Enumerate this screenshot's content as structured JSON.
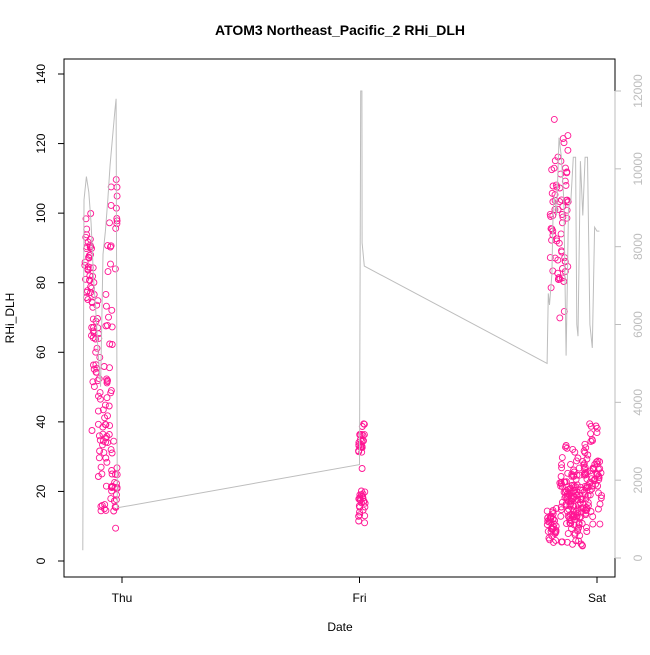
{
  "chart_data": {
    "type": "scatter",
    "title": "ATOM3 Northeast_Pacific_2 RHi_DLH",
    "xlabel": "Date",
    "ylabel": "RHi_DLH",
    "x_ticks": [
      "Thu",
      "Fri",
      "Sat"
    ],
    "ylim": [
      0,
      140
    ],
    "y_ticks": [
      0,
      20,
      40,
      60,
      80,
      100,
      120,
      140
    ],
    "y2lim": [
      0,
      12000
    ],
    "y2_ticks": [
      0,
      2000,
      4000,
      6000,
      8000,
      10000,
      12000
    ],
    "grid": false,
    "legend": "none",
    "series": [
      {
        "role": "points",
        "color": "#ff1493",
        "marker": "open-circle",
        "axis": "left",
        "segments": [
          {
            "start": -0.16,
            "end": -0.12,
            "y_center": 85,
            "y_spread": 20
          },
          {
            "start": -0.13,
            "end": -0.09,
            "y_center": 60,
            "y_spread": 30
          },
          {
            "start": -0.1,
            "end": -0.06,
            "y_center": 35,
            "y_spread": 30
          },
          {
            "start": -0.07,
            "end": -0.04,
            "y_center": 70,
            "y_spread": 60
          },
          {
            "start": -0.05,
            "end": -0.02,
            "y_center": 20,
            "y_spread": 18
          },
          {
            "start": -0.03,
            "end": -0.02,
            "y_center": 100,
            "y_spread": 20
          },
          {
            "start": 0.996,
            "end": 1.024,
            "y_center": 35,
            "y_spread": 10
          },
          {
            "start": 0.996,
            "end": 1.024,
            "y_center": 17,
            "y_spread": 8
          },
          {
            "start": 1.79,
            "end": 1.83,
            "y_center": 10,
            "y_spread": 8
          },
          {
            "start": 1.8,
            "end": 1.88,
            "y_center": 100,
            "y_spread": 35
          },
          {
            "start": 1.84,
            "end": 1.92,
            "y_center": 20,
            "y_spread": 20
          },
          {
            "start": 1.88,
            "end": 1.96,
            "y_center": 15,
            "y_spread": 15
          },
          {
            "start": 1.94,
            "end": 2.02,
            "y_center": 25,
            "y_spread": 20
          }
        ]
      },
      {
        "role": "altitude",
        "color": "#bdbdbd",
        "axis": "right",
        "x": [
          -0.165,
          -0.16,
          -0.15,
          -0.14,
          -0.13,
          -0.12,
          -0.11,
          -0.1,
          -0.09,
          -0.08,
          -0.07,
          -0.06,
          -0.05,
          -0.04,
          -0.03,
          -0.025,
          -0.02,
          -0.01,
          1.0,
          1.005,
          1.01,
          1.011,
          1.02,
          1.79,
          1.795,
          1.8,
          1.81,
          1.815,
          1.82,
          1.83,
          1.84,
          1.85,
          1.86,
          1.87,
          1.875,
          1.88,
          1.89,
          1.9,
          1.91,
          1.915,
          1.92,
          1.93,
          1.94,
          1.95,
          1.96,
          1.97,
          1.98,
          1.99,
          2.0,
          2.01
        ],
        "y": [
          200,
          9200,
          9800,
          9400,
          8600,
          7200,
          6300,
          5200,
          4400,
          7800,
          8400,
          9200,
          10100,
          10800,
          11500,
          11800,
          1300,
          1300,
          2400,
          12000,
          12000,
          8100,
          7500,
          5000,
          6800,
          6500,
          7300,
          8900,
          9300,
          8800,
          10800,
          10300,
          9200,
          5200,
          7000,
          9000,
          9200,
          10300,
          10300,
          6000,
          5700,
          10200,
          8800,
          10300,
          10300,
          6000,
          5400,
          8500,
          8400,
          8400
        ]
      }
    ]
  }
}
